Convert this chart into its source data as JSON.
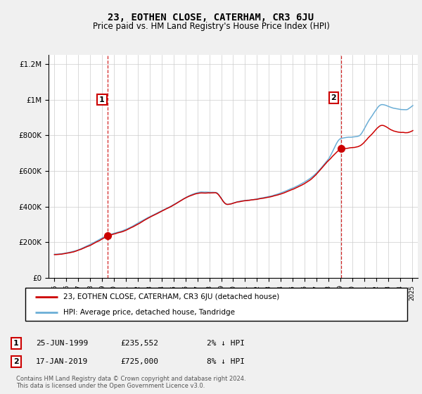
{
  "title": "23, EOTHEN CLOSE, CATERHAM, CR3 6JU",
  "subtitle": "Price paid vs. HM Land Registry's House Price Index (HPI)",
  "footnote": "Contains HM Land Registry data © Crown copyright and database right 2024.\nThis data is licensed under the Open Government Licence v3.0.",
  "legend_line1": "23, EOTHEN CLOSE, CATERHAM, CR3 6JU (detached house)",
  "legend_line2": "HPI: Average price, detached house, Tandridge",
  "sale1_label": "1",
  "sale1_date": "25-JUN-1999",
  "sale1_price": "£235,552",
  "sale1_hpi": "2% ↓ HPI",
  "sale1_year": 1999.48,
  "sale1_value": 235552,
  "sale2_label": "2",
  "sale2_date": "17-JAN-2019",
  "sale2_price": "£725,000",
  "sale2_hpi": "8% ↓ HPI",
  "sale2_year": 2019.04,
  "sale2_value": 725000,
  "red_line_color": "#cc0000",
  "blue_line_color": "#6baed6",
  "background_color": "#f0f0f0",
  "plot_bg_color": "#ffffff",
  "grid_color": "#cccccc",
  "annotation_box_color": "#cc0000",
  "ylim": [
    0,
    1250000
  ],
  "yticks": [
    0,
    200000,
    400000,
    600000,
    800000,
    1000000,
    1200000
  ],
  "ytick_labels": [
    "£0",
    "£200K",
    "£400K",
    "£600K",
    "£800K",
    "£1M",
    "£1.2M"
  ],
  "xlim_start": 1994.5,
  "xlim_end": 2025.5,
  "title_fontsize": 10,
  "subtitle_fontsize": 8.5,
  "axis_fontsize": 7.5
}
